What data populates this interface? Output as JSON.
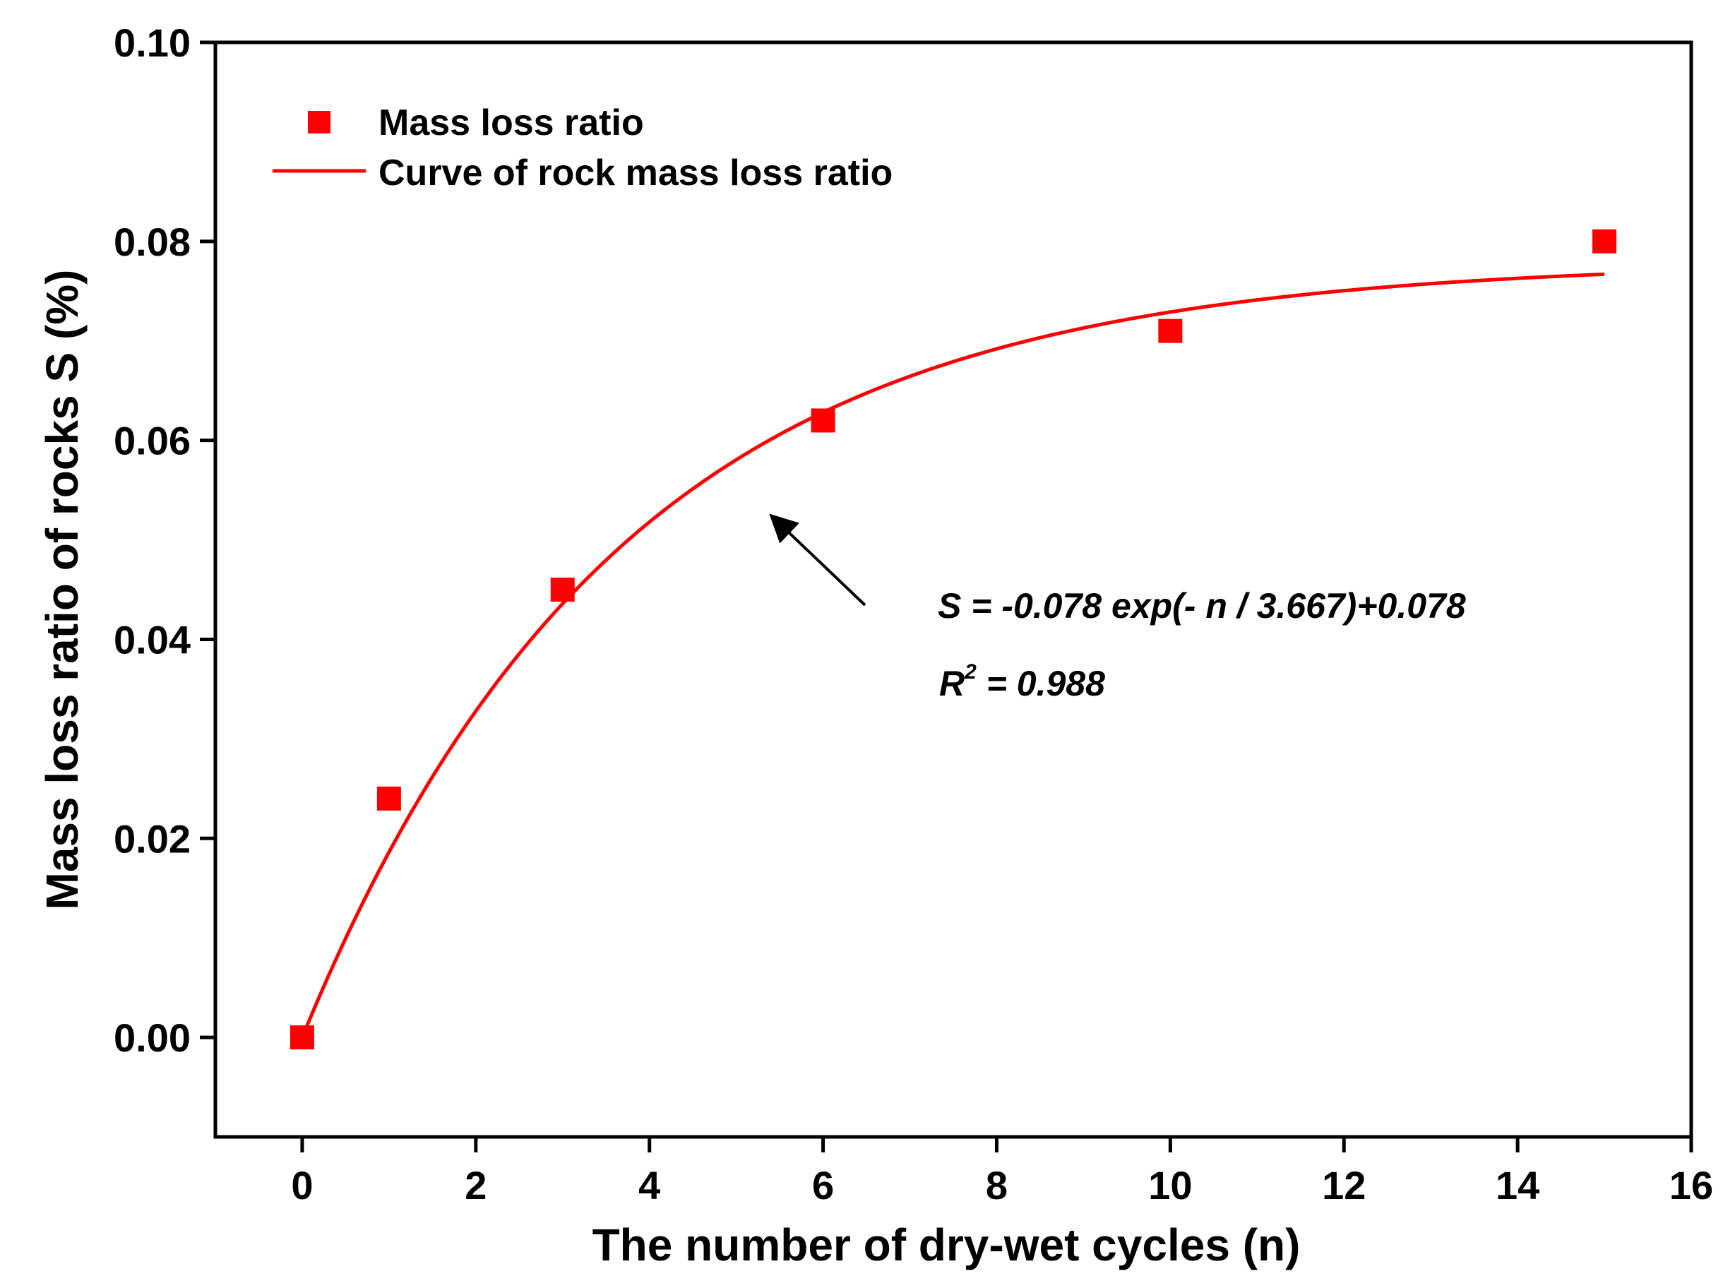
{
  "chart_data": {
    "type": "scatter",
    "xlabel": "The number of dry-wet cycles (n)",
    "ylabel": "Mass loss ratio of rocks S (%)",
    "xlim": [
      -1,
      16
    ],
    "ylim": [
      -0.01,
      0.1
    ],
    "x_ticks": [
      "0",
      "2",
      "4",
      "6",
      "8",
      "10",
      "12",
      "14",
      "16"
    ],
    "y_ticks": [
      "0.00",
      "0.02",
      "0.04",
      "0.06",
      "0.08",
      "0.10"
    ],
    "grid": false,
    "legend": "top-left",
    "series": [
      {
        "name": "Mass loss ratio",
        "kind": "scatter",
        "marker": "square",
        "color": "#ff0000",
        "x": [
          0,
          1,
          3,
          6,
          10,
          15
        ],
        "y": [
          0.0,
          0.024,
          0.045,
          0.062,
          0.071,
          0.08
        ]
      },
      {
        "name": "Curve of rock mass loss ratio",
        "kind": "line",
        "color": "#ff0000",
        "fit": {
          "a": -0.078,
          "tau": 3.667,
          "c": 0.078
        },
        "x_range": [
          0,
          15
        ]
      }
    ],
    "annotation": {
      "equation": "S = -0.078 exp(- n / 3.667)+0.078",
      "r2_prefix": "R",
      "r2_sup": "2",
      "r2_value": " = 0.988",
      "arrow_color": "#000000"
    }
  }
}
